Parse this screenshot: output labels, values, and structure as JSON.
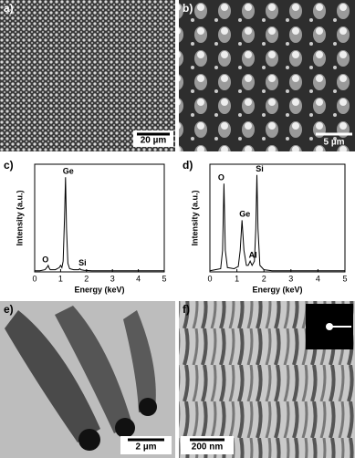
{
  "panels": [
    {
      "label": "a)",
      "scale_bar": "20 µm"
    },
    {
      "label": "b)",
      "scale_bar": "5 µm"
    },
    {
      "label": "e)",
      "scale_bar": "2 µm"
    },
    {
      "label": "f)",
      "scale_bar": "200 nm"
    }
  ],
  "chart_data": [
    {
      "type": "line",
      "label": "c)",
      "x_label": "Energy (keV)",
      "y_label": "Intensity (a.u.)",
      "annotations": [
        "O",
        "Ge",
        "Si"
      ],
      "color": "#000000",
      "x": [
        0,
        0.2,
        0.4,
        0.5,
        0.52,
        0.55,
        0.6,
        0.8,
        0.95,
        1.0,
        1.05,
        1.1,
        1.15,
        1.19,
        1.23,
        1.28,
        1.35,
        1.5,
        1.7,
        1.74,
        1.78,
        1.9,
        2.2,
        3,
        4,
        5
      ],
      "values": [
        1,
        1,
        2,
        5,
        6,
        4,
        2,
        2,
        4,
        6,
        4,
        10,
        50,
        88,
        40,
        8,
        3,
        2,
        2,
        3,
        2,
        1.5,
        1,
        1,
        1,
        1
      ],
      "xlim": [
        0,
        5
      ],
      "ylim": [
        0,
        100
      ],
      "xticks": [
        0,
        1,
        2,
        3,
        4,
        5
      ]
    },
    {
      "type": "line",
      "label": "d)",
      "x_label": "Energy (keV)",
      "y_label": "Intensity (a.u.)",
      "annotations": [
        "O",
        "Ge",
        "Al",
        "Si"
      ],
      "color": "#000000",
      "x": [
        0,
        0.2,
        0.4,
        0.47,
        0.52,
        0.57,
        0.65,
        0.9,
        1.05,
        1.12,
        1.19,
        1.26,
        1.35,
        1.42,
        1.49,
        1.56,
        1.65,
        1.7,
        1.74,
        1.78,
        1.85,
        2.0,
        2.3,
        3,
        4,
        5
      ],
      "values": [
        1,
        2,
        3,
        20,
        82,
        20,
        4,
        3,
        5,
        20,
        48,
        20,
        6,
        6,
        10,
        6,
        10,
        40,
        90,
        40,
        6,
        2,
        1,
        1,
        1,
        1
      ],
      "xlim": [
        0,
        5
      ],
      "ylim": [
        0,
        100
      ],
      "xticks": [
        0,
        1,
        2,
        3,
        4,
        5
      ]
    }
  ]
}
